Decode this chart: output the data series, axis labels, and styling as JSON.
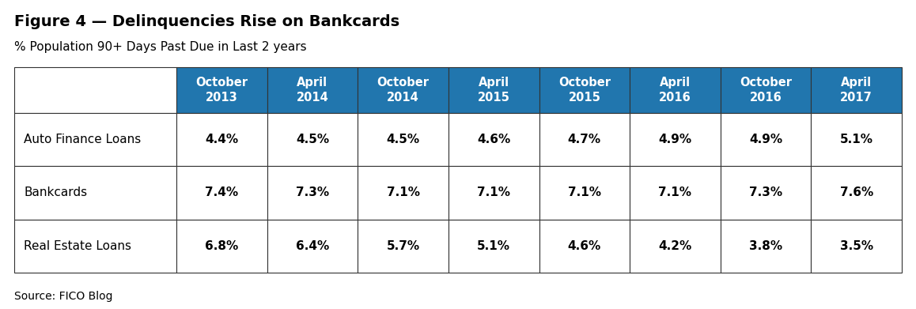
{
  "title": "Figure 4 — Delinquencies Rise on Bankcards",
  "subtitle": "% Population 90+ Days Past Due in Last 2 years",
  "source": "Source: FICO Blog",
  "header_bg_color": "#2176AE",
  "header_text_color": "#FFFFFF",
  "body_text_color": "#000000",
  "row_label_color": "#000000",
  "background_color": "#FFFFFF",
  "columns": [
    "October\n2013",
    "April\n2014",
    "October\n2014",
    "April\n2015",
    "October\n2015",
    "April\n2016",
    "October\n2016",
    "April\n2017"
  ],
  "row_labels": [
    "Auto Finance Loans",
    "Bankcards",
    "Real Estate Loans"
  ],
  "data": [
    [
      "4.4%",
      "4.5%",
      "4.5%",
      "4.6%",
      "4.7%",
      "4.9%",
      "4.9%",
      "5.1%"
    ],
    [
      "7.4%",
      "7.3%",
      "7.1%",
      "7.1%",
      "7.1%",
      "7.1%",
      "7.3%",
      "7.6%"
    ],
    [
      "6.8%",
      "6.4%",
      "5.7%",
      "5.1%",
      "4.6%",
      "4.2%",
      "3.8%",
      "3.5%"
    ]
  ],
  "title_fontsize": 14,
  "subtitle_fontsize": 11,
  "header_fontsize": 10.5,
  "cell_fontsize": 11,
  "row_label_fontsize": 11,
  "source_fontsize": 10
}
